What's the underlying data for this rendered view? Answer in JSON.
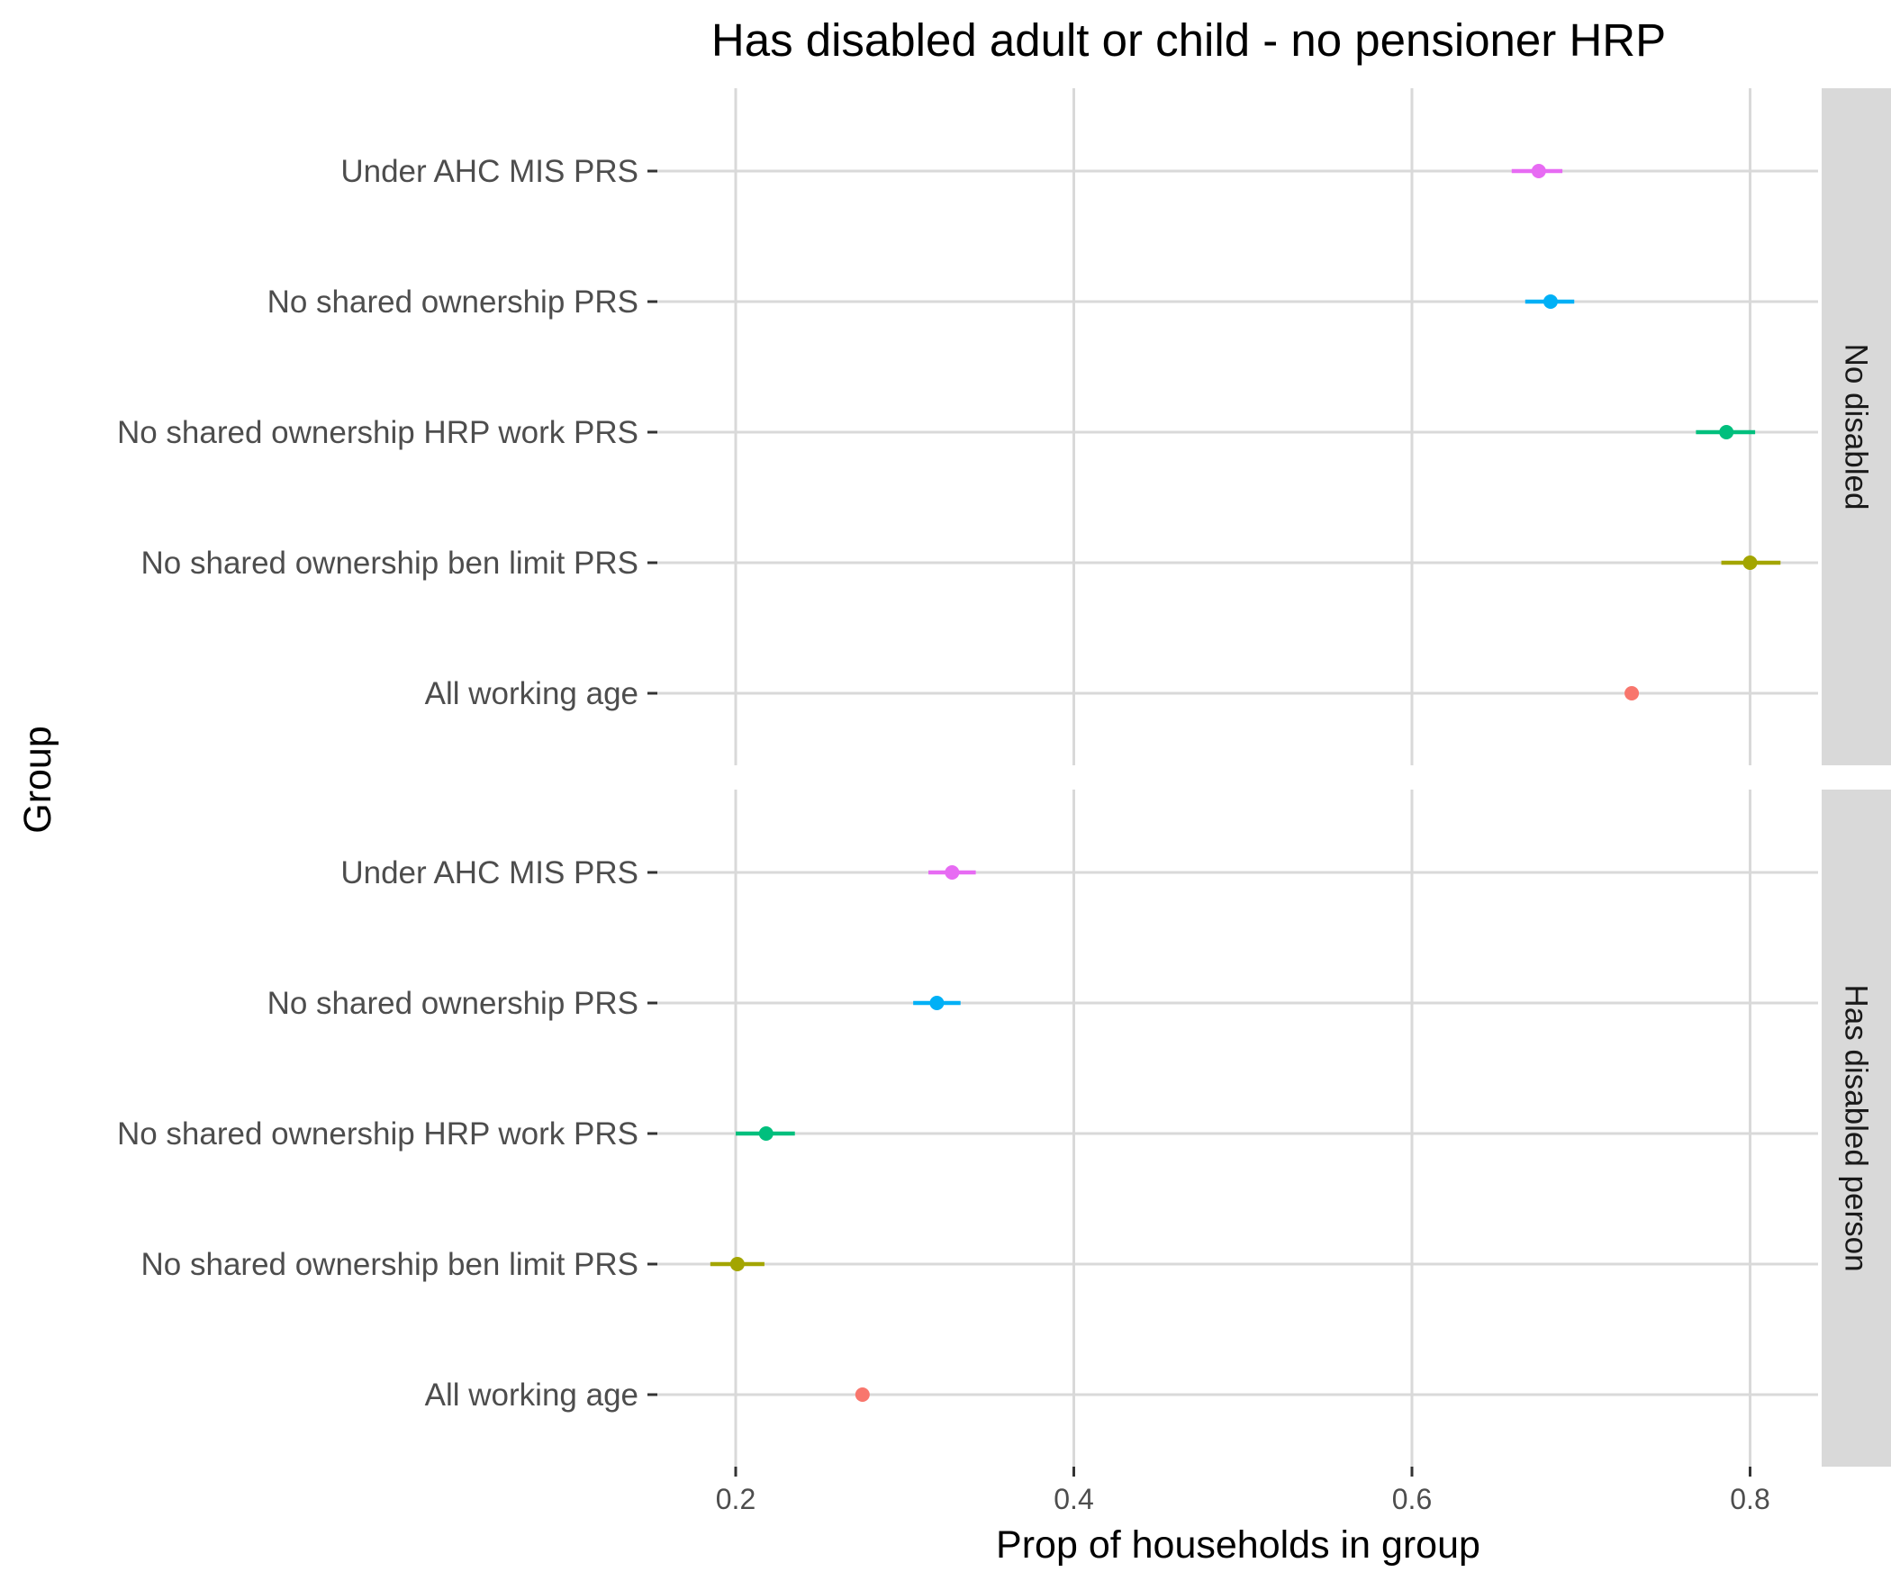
{
  "chart_data": {
    "type": "scatter",
    "title": "Has disabled adult or child - no pensioner HRP",
    "xlabel": "Prop of households in group",
    "ylabel": "Group",
    "x_ticks": [
      "0.2",
      "0.4",
      "0.6",
      "0.8"
    ],
    "x_tick_values": [
      0.2,
      0.4,
      0.6,
      0.8
    ],
    "xlim": [
      0.15,
      0.845
    ],
    "grid": true,
    "legend": "none",
    "categories": [
      "Under AHC MIS PRS",
      "No shared ownership PRS",
      "No shared ownership HRP work PRS",
      "No shared ownership ben limit PRS",
      "All working age"
    ],
    "category_colors": [
      "#e76bf3",
      "#00b0f6",
      "#00bf7d",
      "#a3a500",
      "#f8766d"
    ],
    "panels": [
      {
        "strip": "No disabled",
        "values": [
          0.675,
          0.682,
          0.786,
          0.8,
          0.73
        ],
        "lower": [
          0.659,
          0.667,
          0.768,
          0.783,
          0.728
        ],
        "upper": [
          0.689,
          0.696,
          0.803,
          0.818,
          0.732
        ]
      },
      {
        "strip": "Has disabled person",
        "values": [
          0.328,
          0.319,
          0.218,
          0.201,
          0.275
        ],
        "lower": [
          0.314,
          0.305,
          0.2,
          0.185,
          0.273
        ],
        "upper": [
          0.342,
          0.333,
          0.235,
          0.217,
          0.277
        ]
      }
    ]
  }
}
